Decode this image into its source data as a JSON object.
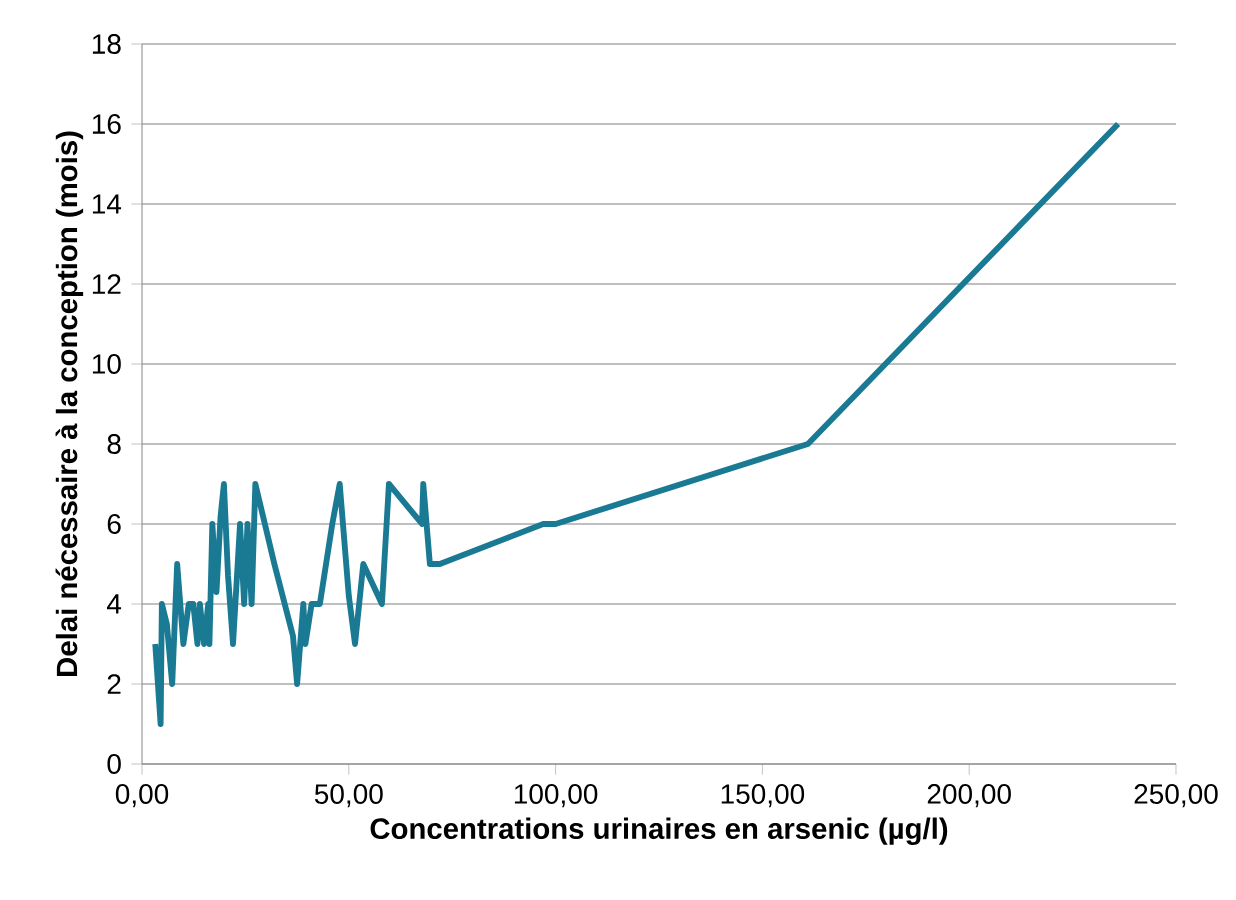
{
  "chart_data": {
    "type": "line",
    "xlabel": "Concentrations urinaires en arsenic (µg/l)",
    "ylabel": "Delai nécessaire à la conception (mois)",
    "x": [
      3.2,
      4.5,
      4.8,
      6,
      7.3,
      8.5,
      10,
      11.3,
      12.4,
      13.4,
      14,
      15,
      16,
      16.3,
      17,
      18,
      19,
      19.8,
      20.8,
      22,
      23.7,
      24.7,
      25.5,
      26.5,
      27.4,
      32,
      36.5,
      37.5,
      39,
      39.5,
      41,
      43,
      46,
      47.8,
      50,
      51.5,
      53.5,
      58,
      59.7,
      67.7,
      68,
      69.6,
      72,
      97,
      100,
      161,
      236
    ],
    "series": [
      {
        "color": "#1a7a94",
        "values": [
          3,
          1,
          4,
          3.5,
          2,
          5,
          3,
          4,
          4,
          3,
          4,
          3,
          4,
          3,
          6,
          4.3,
          6.2,
          7,
          4.7,
          3,
          6,
          4,
          6,
          4,
          7,
          5,
          3.2,
          2,
          4,
          3,
          4,
          4,
          6,
          7,
          4.2,
          3,
          5,
          4,
          7,
          6,
          7,
          5,
          5,
          6,
          6,
          8,
          16
        ]
      }
    ],
    "xlim": [
      0,
      250
    ],
    "xticks": [
      {
        "value": 0,
        "label": "0,00"
      },
      {
        "value": 50,
        "label": "50,00"
      },
      {
        "value": 100,
        "label": "100,00"
      },
      {
        "value": 150,
        "label": "150,00"
      },
      {
        "value": 200,
        "label": "200,00"
      },
      {
        "value": 250,
        "label": "250,00"
      }
    ],
    "ylim": [
      0,
      18
    ],
    "yticks": [
      0,
      2,
      4,
      6,
      8,
      10,
      12,
      14,
      16,
      18
    ],
    "grid": "y",
    "marker": "none",
    "line_style": "solid"
  }
}
